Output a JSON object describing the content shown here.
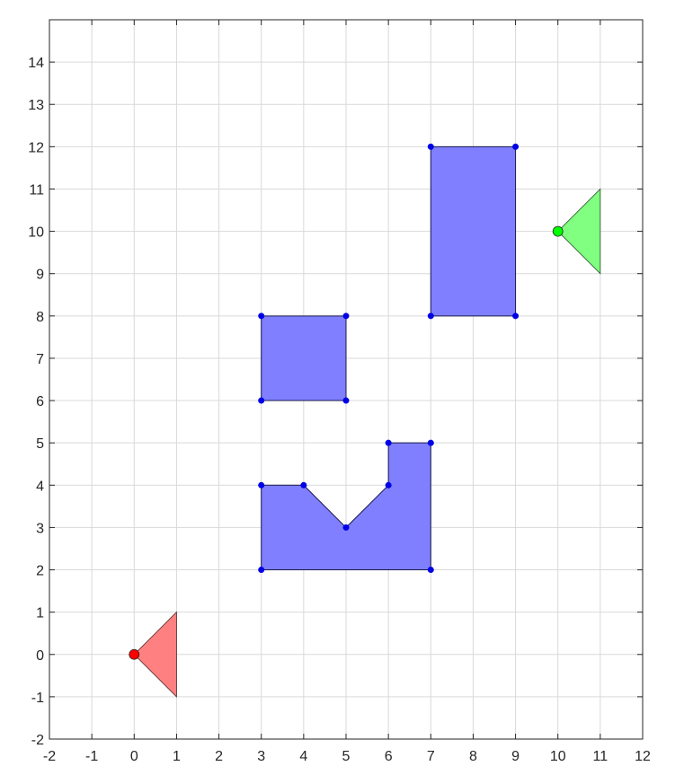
{
  "chart_data": {
    "type": "scatter",
    "title": "",
    "xlabel": "",
    "ylabel": "",
    "xlim": [
      -2,
      12
    ],
    "ylim": [
      -2,
      15
    ],
    "grid": true,
    "x_ticks": [
      -2,
      -1,
      0,
      1,
      2,
      3,
      4,
      5,
      6,
      7,
      8,
      9,
      10,
      11,
      12
    ],
    "y_ticks": [
      -2,
      -1,
      0,
      1,
      2,
      3,
      4,
      5,
      6,
      7,
      8,
      9,
      10,
      11,
      12,
      13,
      14
    ],
    "obstacles": [
      {
        "vertices": [
          [
            3,
            6
          ],
          [
            5,
            6
          ],
          [
            5,
            8
          ],
          [
            3,
            8
          ]
        ]
      },
      {
        "vertices": [
          [
            7,
            8
          ],
          [
            9,
            8
          ],
          [
            9,
            12
          ],
          [
            7,
            12
          ]
        ]
      },
      {
        "vertices": [
          [
            3,
            2
          ],
          [
            7,
            2
          ],
          [
            7,
            5
          ],
          [
            6,
            5
          ],
          [
            6,
            4
          ],
          [
            5,
            3
          ],
          [
            4,
            4
          ],
          [
            3,
            4
          ]
        ]
      }
    ],
    "start": {
      "point": [
        0,
        0
      ],
      "triangle": [
        [
          0,
          0
        ],
        [
          1,
          1
        ],
        [
          1,
          -1
        ]
      ]
    },
    "goal": {
      "point": [
        10,
        10
      ],
      "triangle": [
        [
          10,
          10
        ],
        [
          11,
          11
        ],
        [
          11,
          9
        ]
      ]
    },
    "colors": {
      "obstacle_fill": "#7f7fff",
      "vertex": "#0000e6",
      "start_fill": "#ff8080",
      "start_point": "#ff0000",
      "goal_fill": "#80ff80",
      "goal_point": "#00ff00"
    }
  }
}
